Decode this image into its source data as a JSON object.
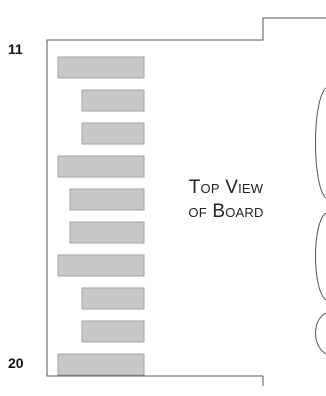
{
  "diagram": {
    "pin_start_label": "11",
    "pin_end_label": "20",
    "caption_line1": "Top View",
    "caption_line2": "of Board",
    "pad_count": 10,
    "pad_offsets": [
      "left",
      "right",
      "right",
      "left",
      "mid",
      "mid",
      "left",
      "right",
      "right",
      "left"
    ],
    "colors": {
      "pad_fill": "#c8c8c8",
      "pad_stroke": "#a3a3a3",
      "outline": "#555555"
    }
  }
}
